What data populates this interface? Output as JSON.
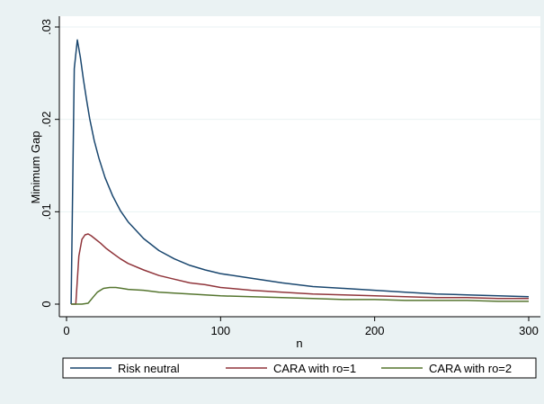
{
  "chart_data": {
    "type": "line",
    "xlabel": "n",
    "ylabel": "Minimum Gap",
    "xlim": [
      0,
      300
    ],
    "ylim": [
      0,
      0.03
    ],
    "x_ticks": [
      {
        "value": 0,
        "label": "0"
      },
      {
        "value": 100,
        "label": "100"
      },
      {
        "value": 200,
        "label": "200"
      },
      {
        "value": 300,
        "label": "300"
      }
    ],
    "y_ticks": [
      {
        "value": 0,
        "label": "0"
      },
      {
        "value": 0.01,
        "label": ".01"
      },
      {
        "value": 0.02,
        "label": ".02"
      },
      {
        "value": 0.03,
        "label": ".03"
      }
    ],
    "grid": "horizontal",
    "legend_position": "bottom",
    "series": [
      {
        "name": "Risk neutral",
        "color": "#1a476f",
        "x": [
          3,
          5,
          7,
          9,
          11,
          13,
          15,
          18,
          21,
          25,
          30,
          35,
          40,
          50,
          60,
          70,
          80,
          90,
          100,
          120,
          140,
          160,
          180,
          200,
          220,
          240,
          260,
          280,
          300
        ],
        "y": [
          0,
          0.0255,
          0.0286,
          0.0267,
          0.0243,
          0.0221,
          0.0201,
          0.0177,
          0.0158,
          0.0137,
          0.0117,
          0.0101,
          0.0089,
          0.0071,
          0.0058,
          0.0049,
          0.0042,
          0.0037,
          0.0033,
          0.0028,
          0.0023,
          0.0019,
          0.0017,
          0.0015,
          0.0013,
          0.0011,
          0.001,
          0.0009,
          0.0008
        ]
      },
      {
        "name": "CARA with ro=1",
        "color": "#90353b",
        "x": [
          3,
          6,
          8,
          10,
          12,
          14,
          16,
          19,
          22,
          26,
          30,
          35,
          40,
          50,
          60,
          70,
          80,
          90,
          100,
          120,
          140,
          160,
          180,
          200,
          220,
          240,
          260,
          280,
          300
        ],
        "y": [
          0,
          0,
          0.0052,
          0.007,
          0.0075,
          0.0076,
          0.0074,
          0.007,
          0.0066,
          0.006,
          0.0055,
          0.0049,
          0.0044,
          0.0037,
          0.0031,
          0.0027,
          0.0023,
          0.0021,
          0.0018,
          0.0015,
          0.0013,
          0.0011,
          0.001,
          0.0009,
          0.0008,
          0.0007,
          0.0007,
          0.0006,
          0.0006
        ]
      },
      {
        "name": "CARA with ro=2",
        "color": "#55752f",
        "x": [
          3,
          10,
          14,
          17,
          20,
          24,
          28,
          32,
          36,
          40,
          50,
          60,
          70,
          80,
          90,
          100,
          120,
          140,
          160,
          180,
          200,
          220,
          240,
          260,
          280,
          300
        ],
        "y": [
          0,
          0,
          0.0001,
          0.0007,
          0.0013,
          0.0017,
          0.0018,
          0.0018,
          0.0017,
          0.0016,
          0.0015,
          0.0013,
          0.0012,
          0.0011,
          0.001,
          0.0009,
          0.0008,
          0.0007,
          0.0006,
          0.0005,
          0.0005,
          0.0004,
          0.0004,
          0.0004,
          0.0003,
          0.0003
        ]
      }
    ]
  }
}
